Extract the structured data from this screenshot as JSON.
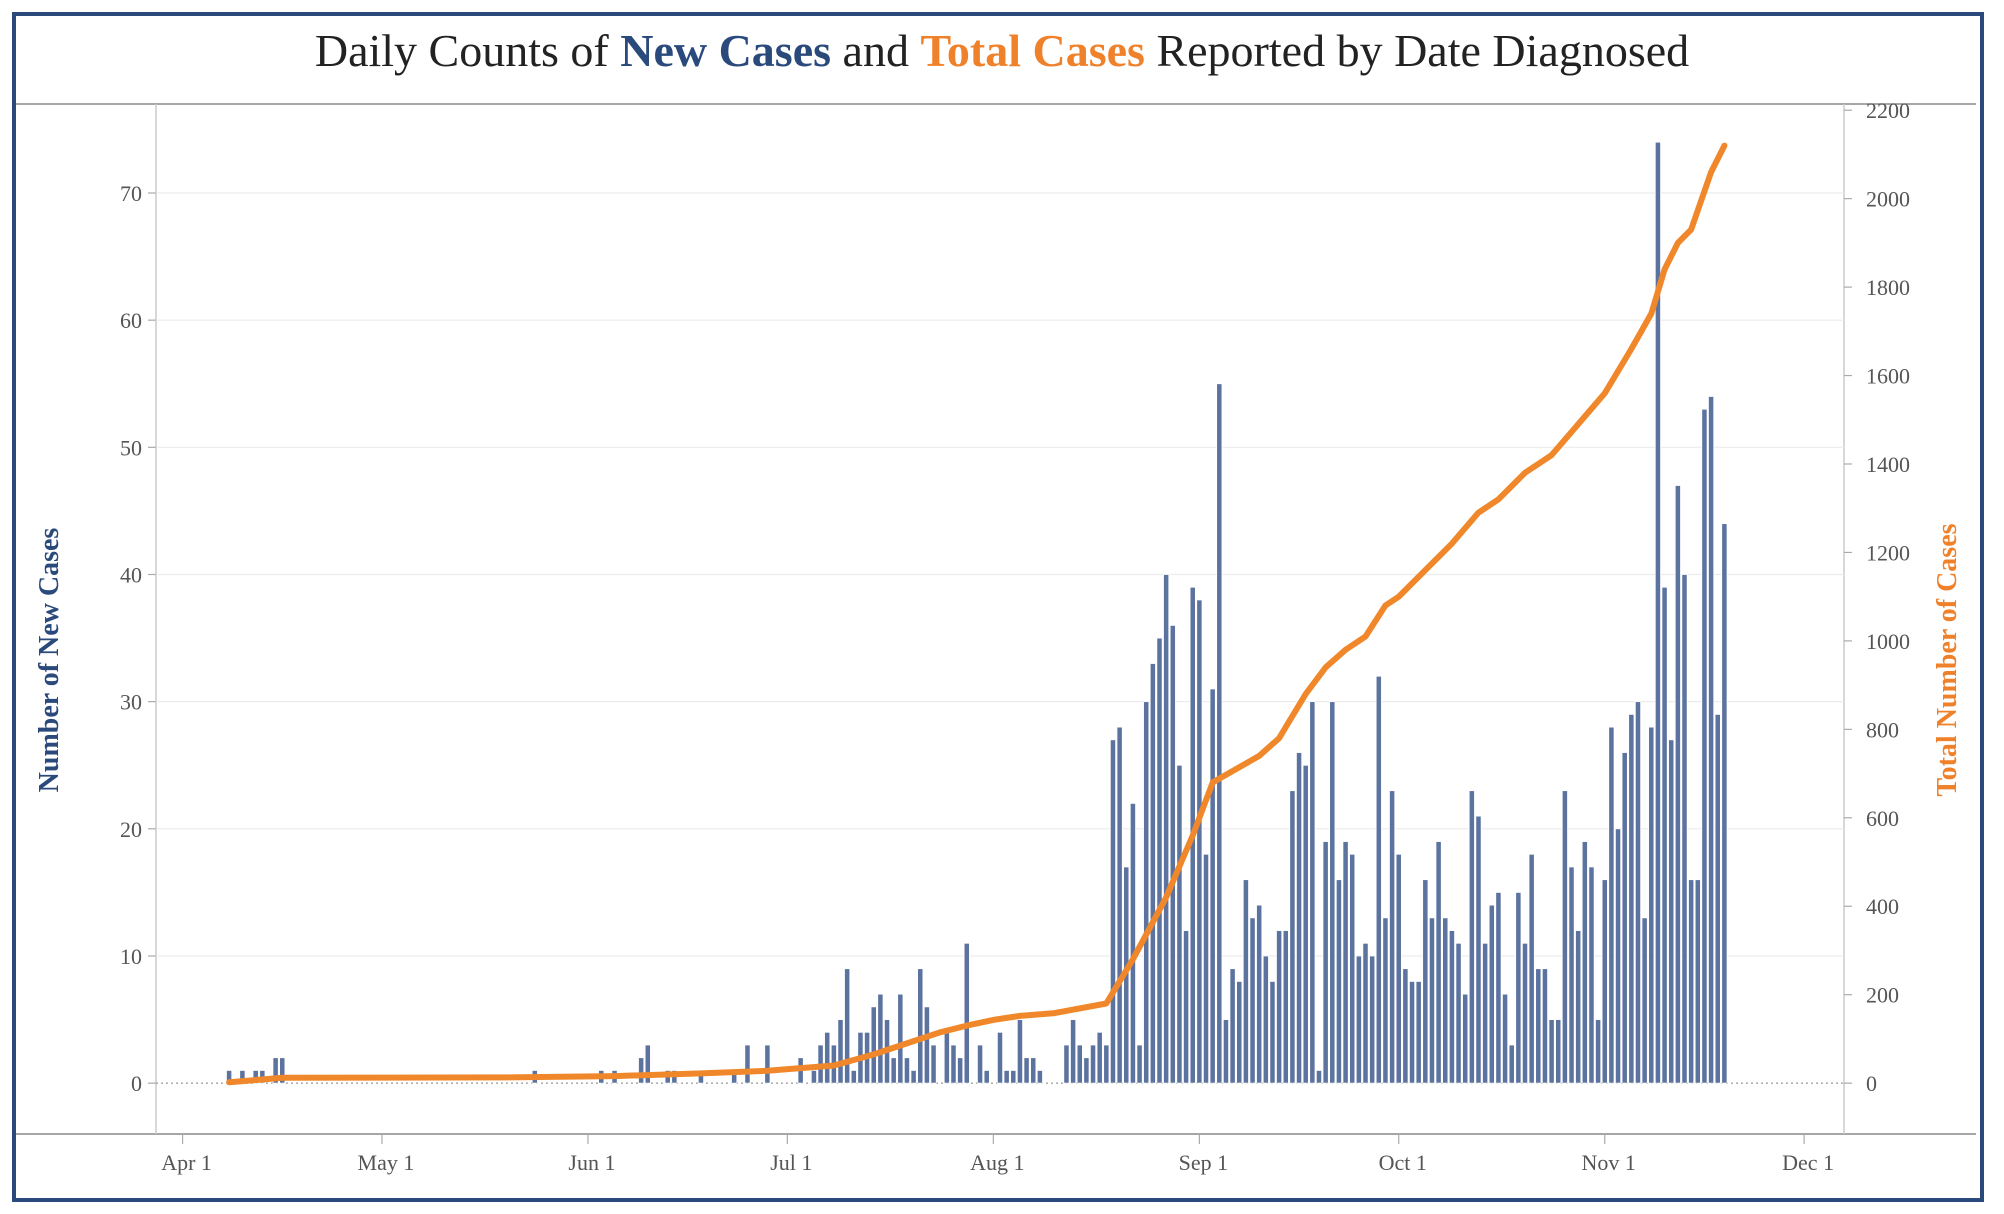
{
  "title": {
    "part1": "Daily Counts of ",
    "part2": "New Cases",
    "part3": " and ",
    "part4": "Total Cases",
    "part5": " Reported by Date Diagnosed"
  },
  "colors": {
    "frame": "#2b4a7c",
    "bars": "#5c73a0",
    "line": "#f0882b",
    "left_title": "#2b4a7c",
    "right_title": "#f0812b"
  },
  "chart_data": {
    "type": "bar+line",
    "xlabel": "",
    "ylabel_left": "Number of New Cases",
    "ylabel_right": "Total Number of Cases",
    "x_ticks": [
      {
        "label": "Apr 1",
        "date": "2020-04-01"
      },
      {
        "label": "May 1",
        "date": "2020-05-01"
      },
      {
        "label": "Jun 1",
        "date": "2020-06-01"
      },
      {
        "label": "Jul 1",
        "date": "2020-07-01"
      },
      {
        "label": "Aug 1",
        "date": "2020-08-01"
      },
      {
        "label": "Sep 1",
        "date": "2020-09-01"
      },
      {
        "label": "Oct 1",
        "date": "2020-10-01"
      },
      {
        "label": "Nov 1",
        "date": "2020-11-01"
      },
      {
        "label": "Dec 1",
        "date": "2020-12-01"
      }
    ],
    "x_range": [
      "2020-03-28",
      "2020-12-07"
    ],
    "ylim_left": [
      -4,
      77
    ],
    "yticks_left": [
      0,
      10,
      20,
      30,
      40,
      50,
      60,
      70
    ],
    "ylim_right": [
      -115,
      2214
    ],
    "yticks_right": [
      0,
      200,
      400,
      600,
      800,
      1000,
      1200,
      1400,
      1600,
      1800,
      2000,
      2200
    ],
    "grid": true,
    "series": [
      {
        "name": "New Cases",
        "type": "bar",
        "axis": "left",
        "points": [
          [
            "2020-04-08",
            1
          ],
          [
            "2020-04-09",
            0
          ],
          [
            "2020-04-10",
            1
          ],
          [
            "2020-04-11",
            0
          ],
          [
            "2020-04-12",
            1
          ],
          [
            "2020-04-13",
            1
          ],
          [
            "2020-04-14",
            0
          ],
          [
            "2020-04-15",
            2
          ],
          [
            "2020-04-16",
            2
          ],
          [
            "2020-05-24",
            1
          ],
          [
            "2020-06-03",
            1
          ],
          [
            "2020-06-05",
            1
          ],
          [
            "2020-06-09",
            2
          ],
          [
            "2020-06-10",
            3
          ],
          [
            "2020-06-13",
            1
          ],
          [
            "2020-06-14",
            1
          ],
          [
            "2020-06-18",
            1
          ],
          [
            "2020-06-23",
            1
          ],
          [
            "2020-06-25",
            3
          ],
          [
            "2020-06-28",
            3
          ],
          [
            "2020-07-03",
            2
          ],
          [
            "2020-07-05",
            1
          ],
          [
            "2020-07-06",
            3
          ],
          [
            "2020-07-07",
            4
          ],
          [
            "2020-07-08",
            3
          ],
          [
            "2020-07-09",
            5
          ],
          [
            "2020-07-10",
            9
          ],
          [
            "2020-07-11",
            1
          ],
          [
            "2020-07-12",
            4
          ],
          [
            "2020-07-13",
            4
          ],
          [
            "2020-07-14",
            6
          ],
          [
            "2020-07-15",
            7
          ],
          [
            "2020-07-16",
            5
          ],
          [
            "2020-07-17",
            2
          ],
          [
            "2020-07-18",
            7
          ],
          [
            "2020-07-19",
            2
          ],
          [
            "2020-07-20",
            1
          ],
          [
            "2020-07-21",
            9
          ],
          [
            "2020-07-22",
            6
          ],
          [
            "2020-07-23",
            3
          ],
          [
            "2020-07-25",
            4
          ],
          [
            "2020-07-26",
            3
          ],
          [
            "2020-07-27",
            2
          ],
          [
            "2020-07-28",
            11
          ],
          [
            "2020-07-30",
            3
          ],
          [
            "2020-07-31",
            1
          ],
          [
            "2020-08-02",
            4
          ],
          [
            "2020-08-03",
            1
          ],
          [
            "2020-08-04",
            1
          ],
          [
            "2020-08-05",
            5
          ],
          [
            "2020-08-06",
            2
          ],
          [
            "2020-08-07",
            2
          ],
          [
            "2020-08-08",
            1
          ],
          [
            "2020-08-12",
            3
          ],
          [
            "2020-08-13",
            5
          ],
          [
            "2020-08-14",
            3
          ],
          [
            "2020-08-15",
            2
          ],
          [
            "2020-08-16",
            3
          ],
          [
            "2020-08-17",
            4
          ],
          [
            "2020-08-18",
            3
          ],
          [
            "2020-08-19",
            27
          ],
          [
            "2020-08-20",
            28
          ],
          [
            "2020-08-21",
            17
          ],
          [
            "2020-08-22",
            22
          ],
          [
            "2020-08-23",
            3
          ],
          [
            "2020-08-24",
            30
          ],
          [
            "2020-08-25",
            33
          ],
          [
            "2020-08-26",
            35
          ],
          [
            "2020-08-27",
            40
          ],
          [
            "2020-08-28",
            36
          ],
          [
            "2020-08-29",
            25
          ],
          [
            "2020-08-30",
            12
          ],
          [
            "2020-08-31",
            39
          ],
          [
            "2020-09-01",
            38
          ],
          [
            "2020-09-02",
            18
          ],
          [
            "2020-09-03",
            31
          ],
          [
            "2020-09-04",
            55
          ],
          [
            "2020-09-05",
            5
          ],
          [
            "2020-09-06",
            9
          ],
          [
            "2020-09-07",
            8
          ],
          [
            "2020-09-08",
            16
          ],
          [
            "2020-09-09",
            13
          ],
          [
            "2020-09-10",
            14
          ],
          [
            "2020-09-11",
            10
          ],
          [
            "2020-09-12",
            8
          ],
          [
            "2020-09-13",
            12
          ],
          [
            "2020-09-14",
            12
          ],
          [
            "2020-09-15",
            23
          ],
          [
            "2020-09-16",
            26
          ],
          [
            "2020-09-17",
            25
          ],
          [
            "2020-09-18",
            30
          ],
          [
            "2020-09-19",
            1
          ],
          [
            "2020-09-20",
            19
          ],
          [
            "2020-09-21",
            30
          ],
          [
            "2020-09-22",
            16
          ],
          [
            "2020-09-23",
            19
          ],
          [
            "2020-09-24",
            18
          ],
          [
            "2020-09-25",
            10
          ],
          [
            "2020-09-26",
            11
          ],
          [
            "2020-09-27",
            10
          ],
          [
            "2020-09-28",
            32
          ],
          [
            "2020-09-29",
            13
          ],
          [
            "2020-09-30",
            23
          ],
          [
            "2020-10-01",
            18
          ],
          [
            "2020-10-02",
            9
          ],
          [
            "2020-10-03",
            8
          ],
          [
            "2020-10-04",
            8
          ],
          [
            "2020-10-05",
            16
          ],
          [
            "2020-10-06",
            13
          ],
          [
            "2020-10-07",
            19
          ],
          [
            "2020-10-08",
            13
          ],
          [
            "2020-10-09",
            12
          ],
          [
            "2020-10-10",
            11
          ],
          [
            "2020-10-11",
            7
          ],
          [
            "2020-10-12",
            23
          ],
          [
            "2020-10-13",
            21
          ],
          [
            "2020-10-14",
            11
          ],
          [
            "2020-10-15",
            14
          ],
          [
            "2020-10-16",
            15
          ],
          [
            "2020-10-17",
            7
          ],
          [
            "2020-10-18",
            3
          ],
          [
            "2020-10-19",
            15
          ],
          [
            "2020-10-20",
            11
          ],
          [
            "2020-10-21",
            18
          ],
          [
            "2020-10-22",
            9
          ],
          [
            "2020-10-23",
            9
          ],
          [
            "2020-10-24",
            5
          ],
          [
            "2020-10-25",
            5
          ],
          [
            "2020-10-26",
            23
          ],
          [
            "2020-10-27",
            17
          ],
          [
            "2020-10-28",
            12
          ],
          [
            "2020-10-29",
            19
          ],
          [
            "2020-10-30",
            17
          ],
          [
            "2020-10-31",
            5
          ],
          [
            "2020-11-01",
            16
          ],
          [
            "2020-11-02",
            28
          ],
          [
            "2020-11-03",
            20
          ],
          [
            "2020-11-04",
            26
          ],
          [
            "2020-11-05",
            29
          ],
          [
            "2020-11-06",
            30
          ],
          [
            "2020-11-07",
            13
          ],
          [
            "2020-11-08",
            28
          ],
          [
            "2020-11-09",
            74
          ],
          [
            "2020-11-10",
            39
          ],
          [
            "2020-11-11",
            27
          ],
          [
            "2020-11-12",
            47
          ],
          [
            "2020-11-13",
            40
          ],
          [
            "2020-11-14",
            16
          ],
          [
            "2020-11-15",
            16
          ],
          [
            "2020-11-16",
            53
          ],
          [
            "2020-11-17",
            54
          ],
          [
            "2020-11-18",
            29
          ],
          [
            "2020-11-19",
            44
          ]
        ]
      },
      {
        "name": "Total Cases",
        "type": "line",
        "axis": "right",
        "points": [
          [
            "2020-04-08",
            2
          ],
          [
            "2020-04-16",
            12
          ],
          [
            "2020-05-20",
            13
          ],
          [
            "2020-06-05",
            16
          ],
          [
            "2020-06-18",
            22
          ],
          [
            "2020-06-28",
            28
          ],
          [
            "2020-07-08",
            40
          ],
          [
            "2020-07-14",
            65
          ],
          [
            "2020-07-20",
            95
          ],
          [
            "2020-07-24",
            115
          ],
          [
            "2020-07-28",
            130
          ],
          [
            "2020-08-01",
            143
          ],
          [
            "2020-08-05",
            152
          ],
          [
            "2020-08-10",
            158
          ],
          [
            "2020-08-18",
            180
          ],
          [
            "2020-08-22",
            280
          ],
          [
            "2020-08-27",
            420
          ],
          [
            "2020-08-31",
            560
          ],
          [
            "2020-09-03",
            680
          ],
          [
            "2020-09-10",
            740
          ],
          [
            "2020-09-13",
            780
          ],
          [
            "2020-09-17",
            880
          ],
          [
            "2020-09-20",
            940
          ],
          [
            "2020-09-23",
            980
          ],
          [
            "2020-09-26",
            1010
          ],
          [
            "2020-09-29",
            1080
          ],
          [
            "2020-10-01",
            1100
          ],
          [
            "2020-10-05",
            1160
          ],
          [
            "2020-10-09",
            1220
          ],
          [
            "2020-10-13",
            1290
          ],
          [
            "2020-10-16",
            1320
          ],
          [
            "2020-10-20",
            1380
          ],
          [
            "2020-10-24",
            1420
          ],
          [
            "2020-10-28",
            1490
          ],
          [
            "2020-11-01",
            1560
          ],
          [
            "2020-11-05",
            1660
          ],
          [
            "2020-11-08",
            1740
          ],
          [
            "2020-11-10",
            1840
          ],
          [
            "2020-11-12",
            1900
          ],
          [
            "2020-11-14",
            1930
          ],
          [
            "2020-11-17",
            2060
          ],
          [
            "2020-11-19",
            2120
          ]
        ]
      }
    ]
  }
}
